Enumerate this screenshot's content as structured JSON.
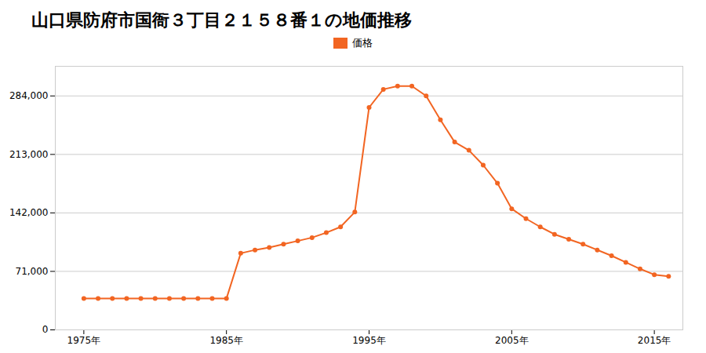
{
  "chart_data": {
    "type": "line",
    "title": "山口県防府市国衙３丁目２１５８番１の地価推移",
    "x": [
      1975,
      1976,
      1977,
      1978,
      1979,
      1980,
      1981,
      1982,
      1983,
      1984,
      1985,
      1986,
      1987,
      1988,
      1989,
      1990,
      1991,
      1992,
      1993,
      1994,
      1995,
      1996,
      1997,
      1998,
      1999,
      2000,
      2001,
      2002,
      2003,
      2004,
      2005,
      2006,
      2007,
      2008,
      2009,
      2010,
      2011,
      2012,
      2013,
      2014,
      2015,
      2016
    ],
    "series": [
      {
        "name": "価格",
        "color": "#f26522",
        "marker": "circle",
        "values": [
          38000,
          38000,
          38000,
          38000,
          38000,
          38000,
          38000,
          38000,
          38000,
          38000,
          38000,
          93000,
          97000,
          100000,
          104000,
          108000,
          112000,
          118000,
          125000,
          143000,
          270000,
          292000,
          296000,
          296000,
          284000,
          255000,
          228000,
          218000,
          200000,
          178000,
          147000,
          135000,
          125000,
          116000,
          110000,
          104000,
          97000,
          90000,
          82000,
          74000,
          67000,
          65000
        ]
      }
    ],
    "xlim": [
      1973,
      2017
    ],
    "xticks": [
      {
        "value": 1975,
        "label": "1975年"
      },
      {
        "value": 1985,
        "label": "1985年"
      },
      {
        "value": 1995,
        "label": "1995年"
      },
      {
        "value": 2005,
        "label": "2005年"
      },
      {
        "value": 2015,
        "label": "2015年"
      }
    ],
    "ylim": [
      0,
      320000
    ],
    "yticks": [
      0,
      {
        "value": 71000,
        "label": "71,000"
      },
      {
        "value": 142000,
        "label": "142,000"
      },
      {
        "value": 213000,
        "label": "213,000"
      },
      {
        "value": 284000,
        "label": "284,000"
      }
    ],
    "grid": true,
    "legend": "top"
  }
}
